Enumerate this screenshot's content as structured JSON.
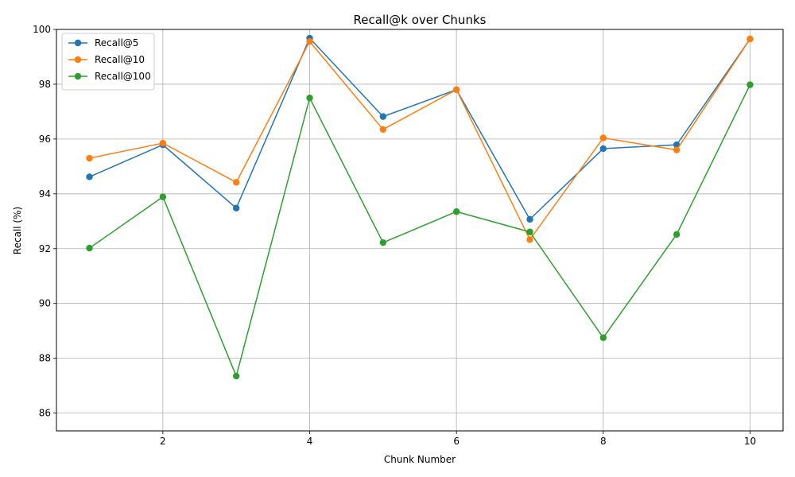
{
  "chart_data": {
    "type": "line",
    "title": "Recall@k over Chunks",
    "xlabel": "Chunk Number",
    "ylabel": "Recall (%)",
    "xlim": [
      0.55,
      10.45
    ],
    "ylim": [
      85.35,
      100
    ],
    "xticks": [
      2,
      4,
      6,
      8,
      10
    ],
    "yticks": [
      86,
      88,
      90,
      92,
      94,
      96,
      98,
      100
    ],
    "grid": true,
    "legend_position": "upper-left",
    "x": [
      1,
      2,
      3,
      4,
      5,
      6,
      7,
      8,
      9,
      10
    ],
    "series": [
      {
        "name": "Recall@5",
        "color": "#1f77b4",
        "values": [
          94.62,
          95.79,
          93.48,
          99.68,
          96.82,
          97.8,
          93.07,
          95.65,
          95.79,
          99.65
        ]
      },
      {
        "name": "Recall@10",
        "color": "#ff7f0e",
        "values": [
          95.3,
          95.85,
          94.42,
          99.56,
          96.35,
          97.8,
          92.33,
          96.04,
          95.6,
          99.65
        ]
      },
      {
        "name": "Recall@100",
        "color": "#2ca02c",
        "values": [
          92.02,
          93.89,
          87.35,
          97.5,
          92.22,
          93.35,
          92.61,
          88.75,
          92.52,
          97.98
        ]
      }
    ]
  }
}
